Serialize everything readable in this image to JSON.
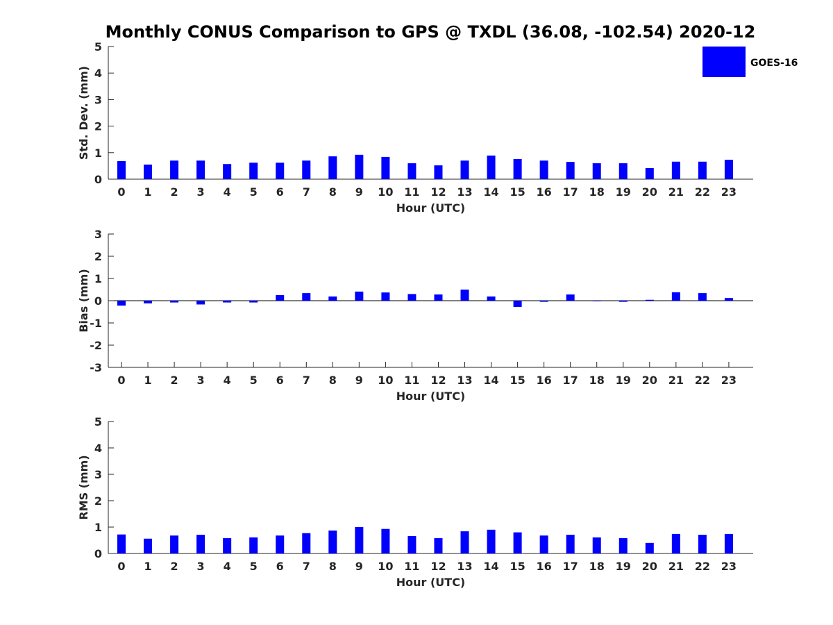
{
  "chart_data": {
    "type": "bar",
    "title": "Monthly CONUS Comparison to GPS @ TXDL (36.08, -102.54) 2020-12",
    "legend": {
      "label": "GOES-16",
      "color": "#0000ff",
      "placement": "top-right"
    },
    "categories": [
      "0",
      "1",
      "2",
      "3",
      "4",
      "5",
      "6",
      "7",
      "8",
      "9",
      "10",
      "11",
      "12",
      "13",
      "14",
      "15",
      "16",
      "17",
      "18",
      "19",
      "20",
      "21",
      "22",
      "23"
    ],
    "grid": false,
    "panels": [
      {
        "ylabel": "Std. Dev. (mm)",
        "xlabel": "Hour (UTC)",
        "ylim": [
          0,
          5
        ],
        "yticks": [
          0,
          1,
          2,
          3,
          4,
          5
        ],
        "series": [
          {
            "name": "GOES-16",
            "color": "#0000ff",
            "values": [
              0.68,
              0.55,
              0.7,
              0.7,
              0.57,
              0.62,
              0.62,
              0.7,
              0.86,
              0.92,
              0.84,
              0.6,
              0.52,
              0.7,
              0.89,
              0.76,
              0.7,
              0.65,
              0.6,
              0.6,
              0.42,
              0.66,
              0.66,
              0.73
            ]
          }
        ]
      },
      {
        "ylabel": "Bias (mm)",
        "xlabel": "Hour (UTC)",
        "ylim": [
          -3,
          3
        ],
        "yticks": [
          -3,
          -2,
          -1,
          0,
          1,
          2,
          3
        ],
        "series": [
          {
            "name": "GOES-16",
            "color": "#0000ff",
            "values": [
              -0.22,
              -0.12,
              -0.08,
              -0.17,
              -0.08,
              -0.08,
              0.25,
              0.34,
              0.19,
              0.41,
              0.37,
              0.3,
              0.28,
              0.5,
              0.19,
              -0.28,
              -0.05,
              0.28,
              0.0,
              -0.05,
              0.04,
              0.38,
              0.34,
              0.12
            ]
          }
        ]
      },
      {
        "ylabel": "RMS (mm)",
        "xlabel": "Hour (UTC)",
        "ylim": [
          0,
          5
        ],
        "yticks": [
          0,
          1,
          2,
          3,
          4,
          5
        ],
        "series": [
          {
            "name": "GOES-16",
            "color": "#0000ff",
            "values": [
              0.72,
              0.56,
              0.68,
              0.71,
              0.58,
              0.61,
              0.68,
              0.77,
              0.87,
              1.0,
              0.93,
              0.66,
              0.58,
              0.84,
              0.9,
              0.8,
              0.68,
              0.71,
              0.61,
              0.58,
              0.4,
              0.74,
              0.71,
              0.74
            ]
          }
        ]
      }
    ]
  }
}
